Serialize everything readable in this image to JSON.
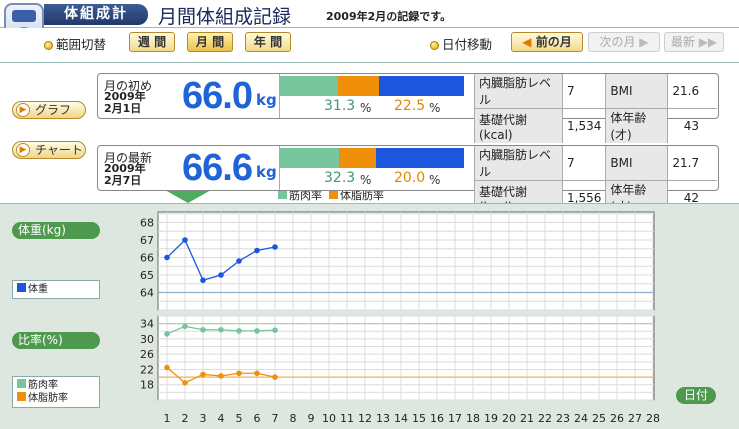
{
  "header": {
    "app_title": "体組成計",
    "view_title": "月間体組成記録",
    "period_note": "2009年2月の記録です。"
  },
  "toolbar": {
    "range_label": "範囲切替",
    "week_label": "週 間",
    "month_label": "月 間",
    "year_label": "年 間",
    "date_move_label": "日付移動",
    "prev_label": "前の月",
    "next_label": "次の月",
    "latest_label": "最新"
  },
  "side": {
    "graph_label": "グラフ",
    "chart_label": "チャート"
  },
  "records": [
    {
      "label": "月の初め",
      "date_year": "2009年",
      "date_day": "2月1日",
      "weight": "66.0",
      "unit": "kg",
      "muscle_pct": "31.3",
      "fat_pct": "22.5",
      "visceral_label": "内臓脂肪レベル",
      "visceral": "7",
      "bmr_label": "基礎代謝(kcal)",
      "bmr": "1,534",
      "bmi_label": "BMI",
      "bmi": "21.6",
      "age_label": "体年齢(才)",
      "age": "43"
    },
    {
      "label": "月の最新",
      "date_year": "2009年",
      "date_day": "2月7日",
      "weight": "66.6",
      "unit": "kg",
      "muscle_pct": "32.3",
      "fat_pct": "20.0",
      "visceral_label": "内臓脂肪レベル",
      "visceral": "7",
      "bmr_label": "基礎代謝(kcal)",
      "bmr": "1,556",
      "bmi_label": "BMI",
      "bmi": "21.7",
      "age_label": "体年齢(才)",
      "age": "42"
    }
  ],
  "summary_legend": {
    "muscle": "筋肉率",
    "fat": "体脂肪率"
  },
  "graph": {
    "weight_title": "体重(kg)",
    "ratio_title": "比率(%)",
    "date_label": "日付",
    "weight_legend": "体重",
    "muscle_legend": "筋肉率",
    "fat_legend": "体脂肪率"
  },
  "colors": {
    "weight": "#1b56dc",
    "muscle": "#76c59c",
    "fat": "#f0900a",
    "accent": "#4d9a4e"
  },
  "chart_data": [
    {
      "type": "line",
      "x": [
        1,
        2,
        3,
        4,
        5,
        6,
        7
      ],
      "xlim": [
        1,
        28
      ],
      "ylim": [
        63,
        68.6
      ],
      "yticks": [
        64,
        65,
        66,
        67,
        68
      ],
      "reference_line": 64,
      "series": [
        {
          "name": "体重",
          "values": [
            66.0,
            67.0,
            64.7,
            65.0,
            65.8,
            66.4,
            66.6
          ]
        }
      ]
    },
    {
      "type": "line",
      "x": [
        1,
        2,
        3,
        4,
        5,
        6,
        7
      ],
      "xlim": [
        1,
        28
      ],
      "xticks": [
        1,
        2,
        3,
        4,
        5,
        6,
        7,
        8,
        9,
        10,
        11,
        12,
        13,
        14,
        15,
        16,
        17,
        18,
        19,
        20,
        21,
        22,
        23,
        24,
        25,
        26,
        27,
        28
      ],
      "ylim": [
        14,
        36
      ],
      "yticks": [
        18,
        22,
        26,
        30,
        34
      ],
      "reference_lines": [
        34,
        20
      ],
      "series": [
        {
          "name": "筋肉率",
          "values": [
            31.3,
            33.3,
            32.4,
            32.4,
            32.1,
            32.1,
            32.3
          ]
        },
        {
          "name": "体脂肪率",
          "values": [
            22.5,
            18.5,
            20.7,
            20.3,
            21.0,
            21.0,
            20.0
          ]
        }
      ]
    }
  ]
}
